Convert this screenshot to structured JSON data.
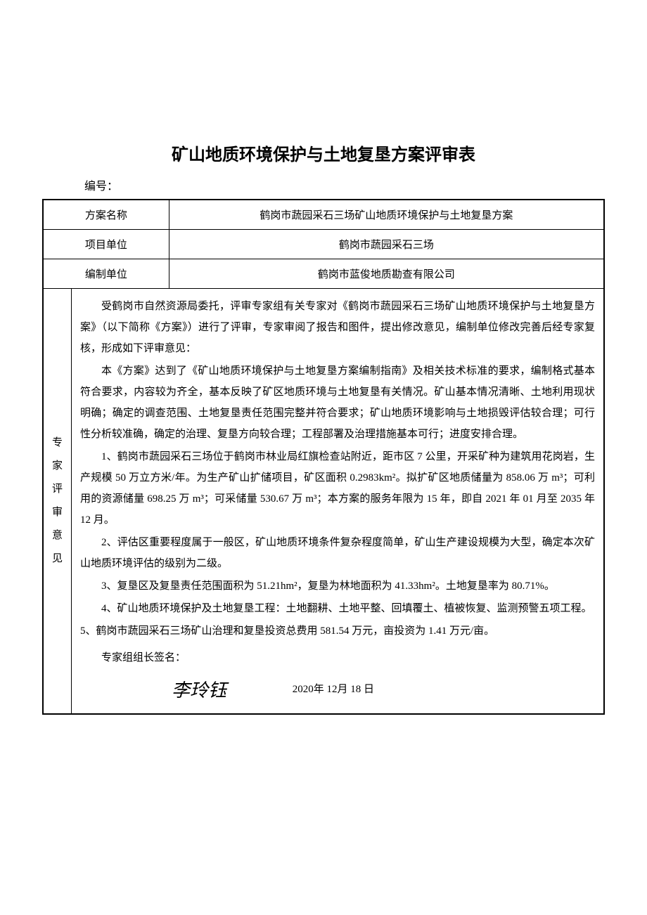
{
  "title": "矿山地质环境保护与土地复垦方案评审表",
  "doc_number_label": "编号：",
  "rows": {
    "plan_name_label": "方案名称",
    "plan_name_value": "鹤岗市蔬园采石三场矿山地质环境保护与土地复垦方案",
    "project_unit_label": "项目单位",
    "project_unit_value": "鹤岗市蔬园采石三场",
    "compile_unit_label": "编制单位",
    "compile_unit_value": "鹤岗市蓝俊地质勘查有限公司"
  },
  "vertical_label": "专\n家\n评\n审\n意\n见",
  "opinion": {
    "p1": "受鹤岗市自然资源局委托，评审专家组有关专家对《鹤岗市蔬园采石三场矿山地质环境保护与土地复垦方案》（以下简称《方案》）进行了评审，专家审阅了报告和图件，提出修改意见，编制单位修改完善后经专家复核，形成如下评审意见：",
    "p2": "本《方案》达到了《矿山地质环境保护与土地复垦方案编制指南》及相关技术标准的要求，编制格式基本符合要求，内容较为齐全，基本反映了矿区地质环境与土地复垦有关情况。矿山基本情况清晰、土地利用现状明确；确定的调查范围、土地复垦责任范围完整并符合要求；矿山地质环境影响与土地损毁评估较合理；可行性分析较准确，确定的治理、复垦方向较合理；工程部署及治理措施基本可行；进度安排合理。",
    "p3": "1、鹤岗市蔬园采石三场位于鹤岗市林业局红旗检查站附近，距市区 7 公里，开采矿种为建筑用花岗岩，生产规模 50 万立方米/年。为生产矿山扩储项目，矿区面积 0.2983km²。拟扩矿区地质储量为 858.06 万 m³；可利用的资源储量 698.25 万 m³；可采储量 530.67 万 m³；本方案的服务年限为 15 年，即自 2021 年 01 月至 2035 年 12 月。",
    "p4": "2、评估区重要程度属于一般区，矿山地质环境条件复杂程度简单，矿山生产建设规模为大型，确定本次矿山地质环境评估的级别为二级。",
    "p5": "3、复垦区及复垦责任范围面积为 51.21hm²，复垦为林地面积为 41.33hm²。土地复垦率为 80.71%。",
    "p6": "4、矿山地质环境保护及土地复垦工程：土地翻耕、土地平整、回填覆土、植被恢复、监测预警五项工程。",
    "p7": "5、鹤岗市蔬园采石三场矿山治理和复垦投资总费用 581.54 万元，亩投资为 1.41 万元/亩。",
    "signature_label": "专家组组长签名：",
    "signature_name": "李玲钰",
    "signature_date": "2020年 12月 18 日"
  },
  "colors": {
    "text": "#000000",
    "border": "#000000",
    "background": "#ffffff"
  }
}
